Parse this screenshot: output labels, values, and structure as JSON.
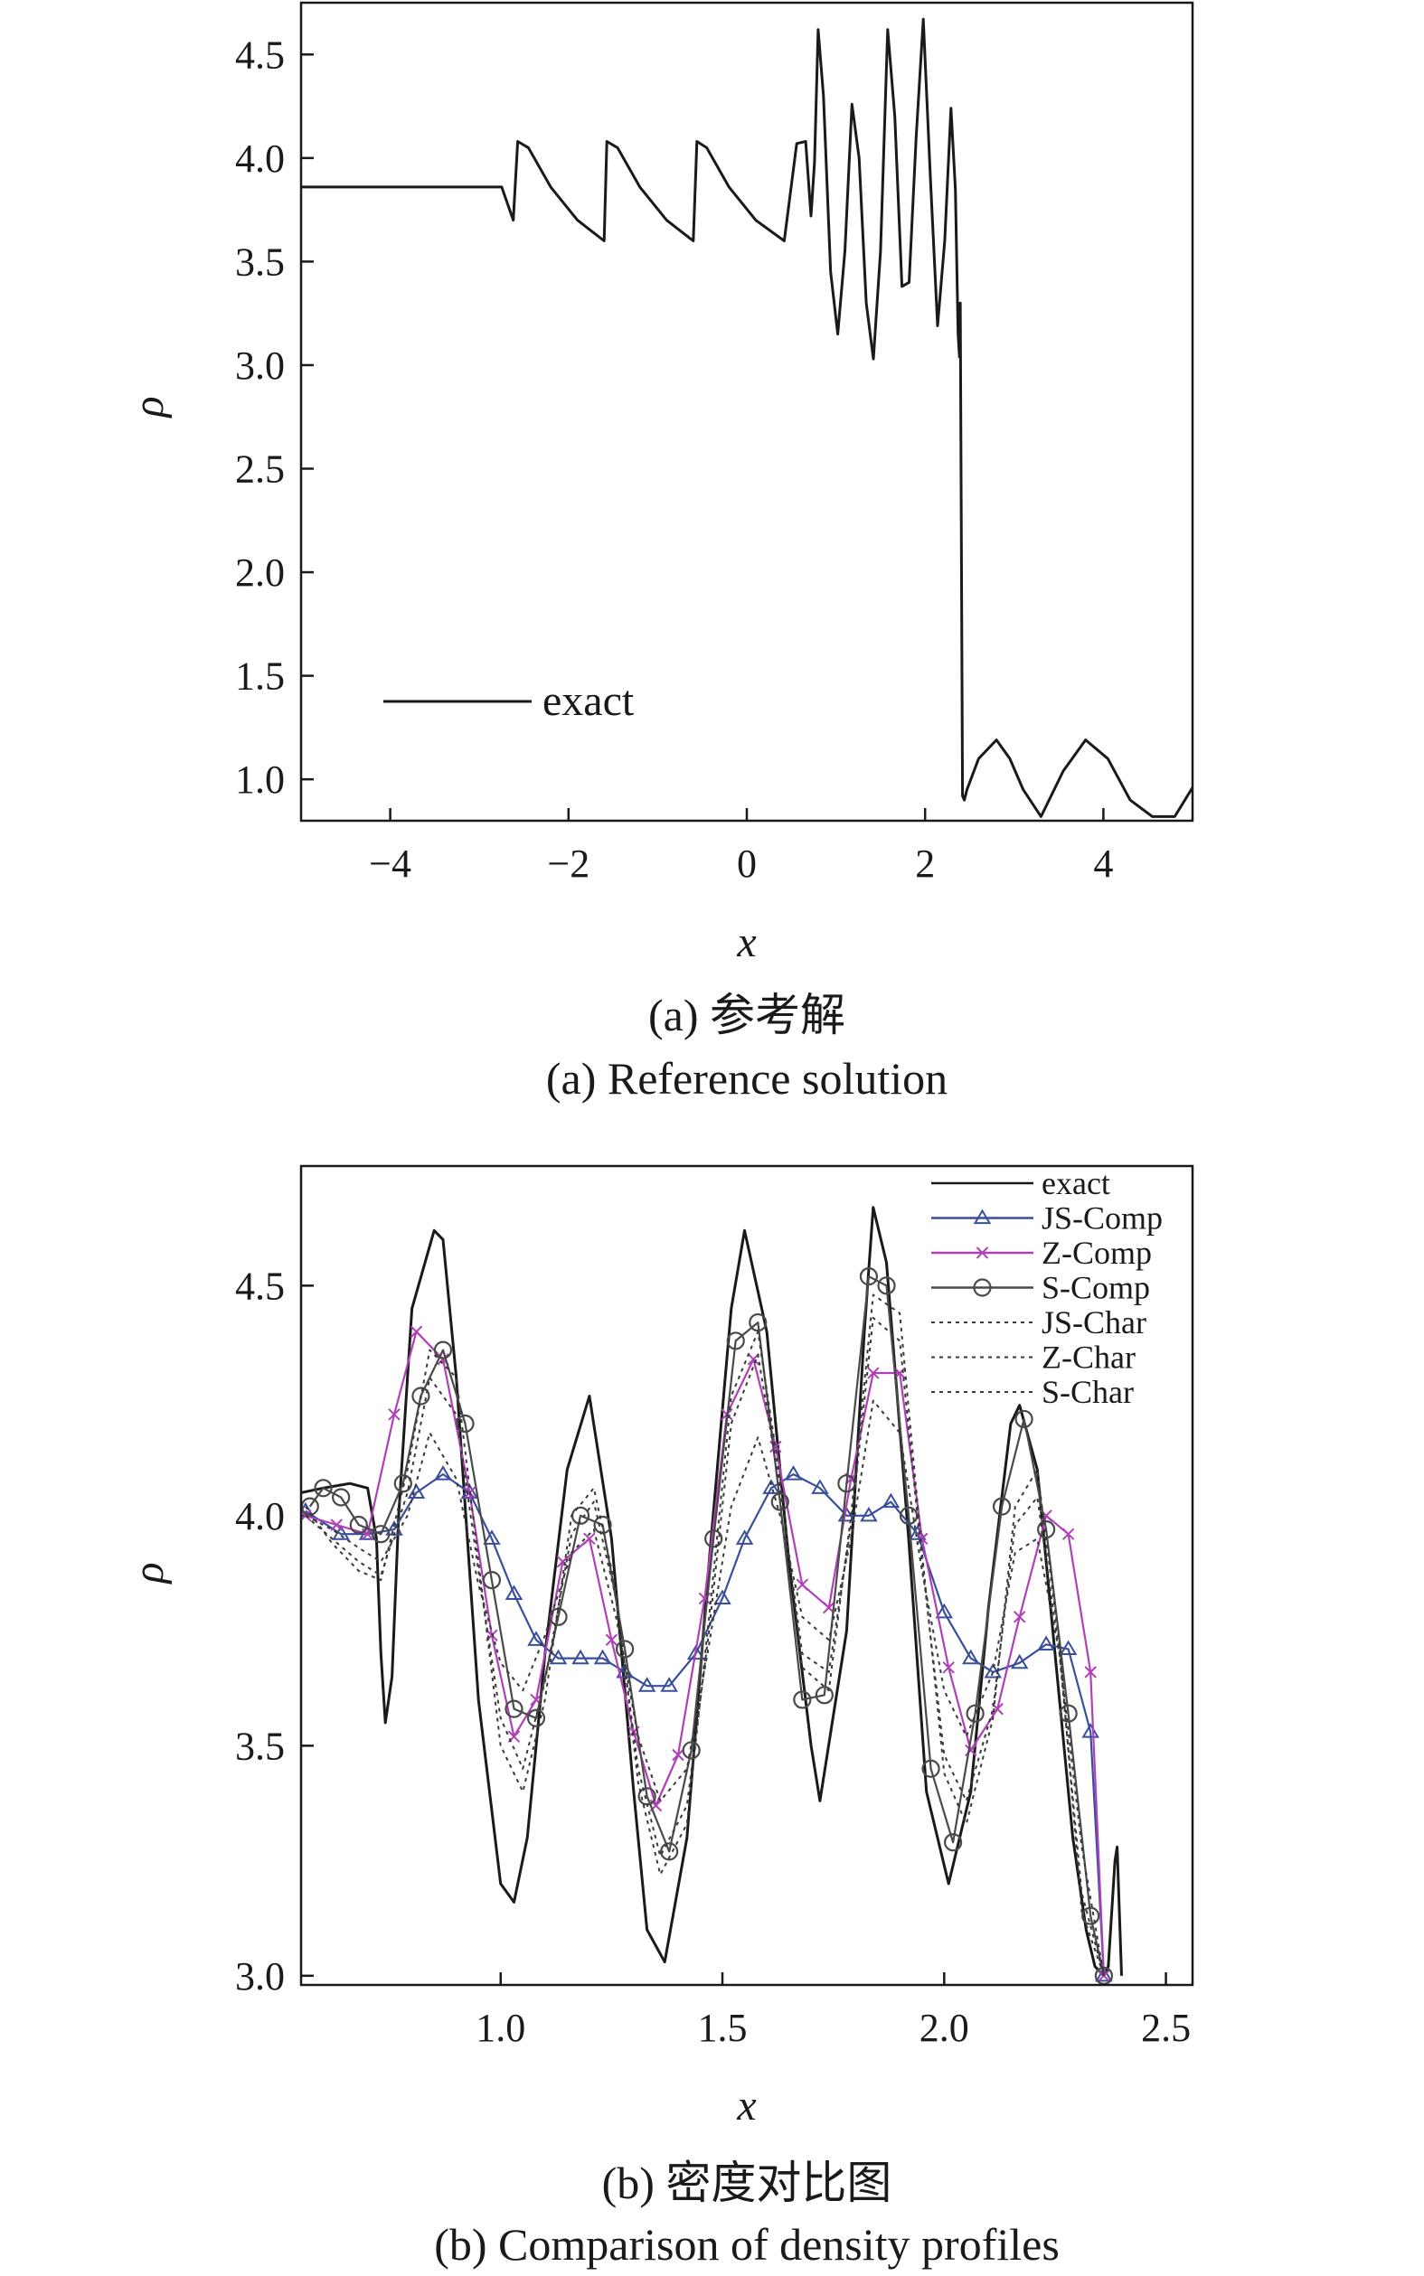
{
  "panel_a": {
    "caption_cn": "(a) 参考解",
    "caption_en": "(a) Reference solution"
  },
  "panel_b": {
    "caption_cn": "(b) 密度对比图",
    "caption_en": "(b) Comparison of density profiles"
  },
  "chart_data": [
    {
      "type": "line",
      "xlabel": "x",
      "ylabel": "ρ",
      "xlim": [
        -5,
        5
      ],
      "ylim": [
        0.8,
        4.75
      ],
      "xticks": [
        -4,
        -2,
        0,
        2,
        4
      ],
      "xtick_labels": [
        "−4",
        "−2",
        "0",
        "2",
        "4"
      ],
      "yticks": [
        1.0,
        1.5,
        2.0,
        2.5,
        3.0,
        3.5,
        4.0,
        4.5
      ],
      "ytick_labels": [
        "1.0",
        "1.5",
        "2.0",
        "2.5",
        "3.0",
        "3.5",
        "4.0",
        "4.5"
      ],
      "legend_position": "bottom-left",
      "series": [
        {
          "name": "exact",
          "color": "#1a1a1a",
          "x": [
            -5,
            -2.75,
            -2.62,
            -2.57,
            -2.45,
            -2.2,
            -1.9,
            -1.6,
            -1.57,
            -1.45,
            -1.2,
            -0.9,
            -0.6,
            -0.56,
            -0.45,
            -0.2,
            0.1,
            0.42,
            0.56,
            0.66,
            0.72,
            0.76,
            0.8,
            0.86,
            0.94,
            1.02,
            1.1,
            1.18,
            1.26,
            1.34,
            1.42,
            1.5,
            1.58,
            1.66,
            1.74,
            1.82,
            1.9,
            1.98,
            2.06,
            2.14,
            2.22,
            2.29,
            2.34,
            2.37,
            2.385,
            2.39,
            2.395,
            2.42,
            2.44,
            2.47,
            2.6,
            2.8,
            2.95,
            3.1,
            3.3,
            3.55,
            3.8,
            4.05,
            4.3,
            4.55,
            4.8,
            5.0
          ],
          "y": [
            3.86,
            3.86,
            3.7,
            4.08,
            4.05,
            3.86,
            3.7,
            3.6,
            4.08,
            4.05,
            3.86,
            3.7,
            3.6,
            4.08,
            4.05,
            3.86,
            3.7,
            3.6,
            4.07,
            4.08,
            3.72,
            3.98,
            4.62,
            4.3,
            3.45,
            3.15,
            3.55,
            4.26,
            4.0,
            3.3,
            3.03,
            3.55,
            4.62,
            4.2,
            3.38,
            3.4,
            4.1,
            4.67,
            3.9,
            3.19,
            3.6,
            4.24,
            3.85,
            3.15,
            3.04,
            3.28,
            3.3,
            0.92,
            0.9,
            0.95,
            1.1,
            1.19,
            1.1,
            0.95,
            0.82,
            1.04,
            1.19,
            1.1,
            0.9,
            0.82,
            0.82,
            0.96
          ]
        }
      ]
    },
    {
      "type": "line",
      "xlabel": "x",
      "ylabel": "ρ",
      "xlim": [
        0.55,
        2.56
      ],
      "ylim": [
        2.98,
        4.76
      ],
      "xticks": [
        1.0,
        1.5,
        2.0,
        2.5
      ],
      "xtick_labels": [
        "1.0",
        "1.5",
        "2.0",
        "2.5"
      ],
      "yticks": [
        3.0,
        3.5,
        4.0,
        4.5
      ],
      "ytick_labels": [
        "3.0",
        "3.5",
        "4.0",
        "4.5"
      ],
      "legend_position": "top-right",
      "series": [
        {
          "name": "exact",
          "color": "#1a1a1a",
          "marker": "none",
          "dash": "solid",
          "x": [
            0.55,
            0.6,
            0.66,
            0.7,
            0.72,
            0.73,
            0.74,
            0.755,
            0.77,
            0.8,
            0.85,
            0.87,
            0.9,
            0.95,
            1.0,
            1.03,
            1.06,
            1.1,
            1.15,
            1.2,
            1.25,
            1.3,
            1.33,
            1.37,
            1.42,
            1.47,
            1.52,
            1.55,
            1.6,
            1.65,
            1.7,
            1.72,
            1.78,
            1.82,
            1.84,
            1.87,
            1.92,
            1.96,
            2.01,
            2.06,
            2.1,
            2.15,
            2.17,
            2.21,
            2.25,
            2.29,
            2.32,
            2.34,
            2.36,
            2.37,
            2.385,
            2.39,
            2.4
          ],
          "y": [
            4.05,
            4.06,
            4.07,
            4.06,
            3.95,
            3.7,
            3.55,
            3.65,
            4.0,
            4.45,
            4.62,
            4.6,
            4.3,
            3.6,
            3.2,
            3.16,
            3.3,
            3.7,
            4.1,
            4.26,
            3.95,
            3.4,
            3.1,
            3.03,
            3.3,
            3.9,
            4.45,
            4.62,
            4.4,
            3.9,
            3.5,
            3.38,
            3.75,
            4.4,
            4.67,
            4.55,
            3.95,
            3.4,
            3.2,
            3.4,
            3.8,
            4.2,
            4.24,
            4.1,
            3.7,
            3.3,
            3.1,
            3.02,
            3.0,
            3.02,
            3.25,
            3.28,
            3.0
          ]
        },
        {
          "name": "JS-Comp",
          "color": "#3a4f9c",
          "marker": "triangle",
          "dash": "solid",
          "x": [
            0.56,
            0.64,
            0.7,
            0.76,
            0.81,
            0.87,
            0.93,
            0.98,
            1.03,
            1.08,
            1.13,
            1.18,
            1.23,
            1.28,
            1.33,
            1.38,
            1.44,
            1.5,
            1.55,
            1.61,
            1.66,
            1.72,
            1.78,
            1.83,
            1.88,
            1.94,
            2.0,
            2.06,
            2.11,
            2.17,
            2.23,
            2.28,
            2.33,
            2.36
          ],
          "y": [
            4.01,
            3.96,
            3.96,
            3.97,
            4.05,
            4.09,
            4.05,
            3.95,
            3.83,
            3.73,
            3.69,
            3.69,
            3.69,
            3.66,
            3.63,
            3.63,
            3.7,
            3.82,
            3.95,
            4.06,
            4.09,
            4.06,
            4.0,
            4.0,
            4.03,
            3.96,
            3.79,
            3.69,
            3.66,
            3.68,
            3.72,
            3.71,
            3.53,
            3.0
          ]
        },
        {
          "name": "Z-Comp",
          "color": "#b040b8",
          "marker": "cross",
          "dash": "solid",
          "x": [
            0.56,
            0.63,
            0.7,
            0.76,
            0.81,
            0.87,
            0.93,
            0.98,
            1.03,
            1.08,
            1.14,
            1.2,
            1.25,
            1.3,
            1.35,
            1.4,
            1.46,
            1.51,
            1.57,
            1.62,
            1.68,
            1.74,
            1.79,
            1.84,
            1.9,
            1.95,
            2.01,
            2.06,
            2.12,
            2.17,
            2.23,
            2.28,
            2.33,
            2.36
          ],
          "y": [
            4.0,
            3.98,
            3.96,
            4.22,
            4.4,
            4.34,
            4.05,
            3.74,
            3.52,
            3.6,
            3.9,
            3.95,
            3.73,
            3.53,
            3.37,
            3.48,
            3.82,
            4.22,
            4.34,
            4.15,
            3.85,
            3.8,
            4.08,
            4.31,
            4.31,
            3.95,
            3.67,
            3.49,
            3.58,
            3.78,
            4.0,
            3.96,
            3.66,
            3.0
          ]
        },
        {
          "name": "S-Comp",
          "color": "#4a4a4a",
          "marker": "circle",
          "dash": "solid",
          "x": [
            0.57,
            0.6,
            0.64,
            0.68,
            0.73,
            0.78,
            0.82,
            0.87,
            0.92,
            0.98,
            1.03,
            1.08,
            1.13,
            1.18,
            1.23,
            1.28,
            1.33,
            1.38,
            1.43,
            1.48,
            1.53,
            1.58,
            1.63,
            1.68,
            1.73,
            1.78,
            1.83,
            1.87,
            1.92,
            1.97,
            2.02,
            2.07,
            2.13,
            2.18,
            2.23,
            2.28,
            2.33,
            2.36
          ],
          "y": [
            4.02,
            4.06,
            4.04,
            3.98,
            3.96,
            4.07,
            4.26,
            4.36,
            4.2,
            3.86,
            3.58,
            3.56,
            3.78,
            4.0,
            3.98,
            3.71,
            3.39,
            3.27,
            3.49,
            3.95,
            4.38,
            4.42,
            4.03,
            3.6,
            3.61,
            4.07,
            4.52,
            4.5,
            4.0,
            3.45,
            3.29,
            3.57,
            4.02,
            4.21,
            3.97,
            3.57,
            3.13,
            3.0
          ]
        },
        {
          "name": "JS-Char",
          "color": "#3a3a3a",
          "marker": "none",
          "dash": "dotted",
          "x": [
            0.56,
            0.62,
            0.68,
            0.73,
            0.79,
            0.84,
            0.9,
            0.95,
            1.0,
            1.05,
            1.1,
            1.16,
            1.21,
            1.26,
            1.31,
            1.36,
            1.42,
            1.47,
            1.52,
            1.58,
            1.63,
            1.68,
            1.74,
            1.79,
            1.84,
            1.9,
            1.95,
            2.0,
            2.05,
            2.11,
            2.16,
            2.21,
            2.26,
            2.31,
            2.36
          ],
          "y": [
            4.0,
            3.97,
            3.93,
            3.9,
            4.0,
            4.18,
            4.08,
            3.85,
            3.68,
            3.62,
            3.74,
            3.92,
            3.97,
            3.78,
            3.52,
            3.38,
            3.45,
            3.72,
            4.02,
            4.17,
            4.0,
            3.78,
            3.73,
            3.95,
            4.25,
            4.18,
            3.88,
            3.62,
            3.52,
            3.66,
            3.92,
            3.95,
            3.7,
            3.28,
            3.0
          ]
        },
        {
          "name": "Z-Char",
          "color": "#3a3a3a",
          "marker": "none",
          "dash": "dotted",
          "x": [
            0.56,
            0.62,
            0.68,
            0.73,
            0.79,
            0.84,
            0.9,
            0.95,
            1.0,
            1.05,
            1.1,
            1.16,
            1.21,
            1.26,
            1.31,
            1.36,
            1.42,
            1.47,
            1.52,
            1.58,
            1.63,
            1.68,
            1.74,
            1.79,
            1.84,
            1.9,
            1.95,
            2.0,
            2.05,
            2.11,
            2.16,
            2.21,
            2.26,
            2.31,
            2.36
          ],
          "y": [
            4.0,
            3.95,
            3.9,
            3.87,
            4.05,
            4.3,
            4.22,
            3.88,
            3.56,
            3.45,
            3.64,
            3.96,
            4.03,
            3.82,
            3.45,
            3.26,
            3.37,
            3.75,
            4.2,
            4.35,
            4.06,
            3.7,
            3.66,
            3.98,
            4.43,
            4.38,
            3.9,
            3.48,
            3.38,
            3.58,
            3.98,
            4.04,
            3.7,
            3.18,
            3.0
          ]
        },
        {
          "name": "S-Char",
          "color": "#3a3a3a",
          "marker": "none",
          "dash": "dotted",
          "x": [
            0.56,
            0.62,
            0.68,
            0.73,
            0.79,
            0.84,
            0.9,
            0.95,
            1.0,
            1.05,
            1.1,
            1.16,
            1.21,
            1.26,
            1.31,
            1.36,
            1.42,
            1.47,
            1.52,
            1.58,
            1.63,
            1.68,
            1.74,
            1.79,
            1.84,
            1.9,
            1.95,
            2.0,
            2.05,
            2.11,
            2.16,
            2.21,
            2.26,
            2.31,
            2.36
          ],
          "y": [
            4.02,
            3.94,
            3.88,
            3.86,
            4.1,
            4.36,
            4.3,
            3.9,
            3.5,
            3.4,
            3.6,
            4.0,
            4.06,
            3.84,
            3.42,
            3.22,
            3.33,
            3.78,
            4.26,
            4.4,
            4.08,
            3.67,
            3.62,
            4.0,
            4.48,
            4.44,
            3.92,
            3.44,
            3.33,
            3.56,
            4.02,
            4.1,
            3.72,
            3.14,
            3.0
          ]
        }
      ]
    }
  ]
}
